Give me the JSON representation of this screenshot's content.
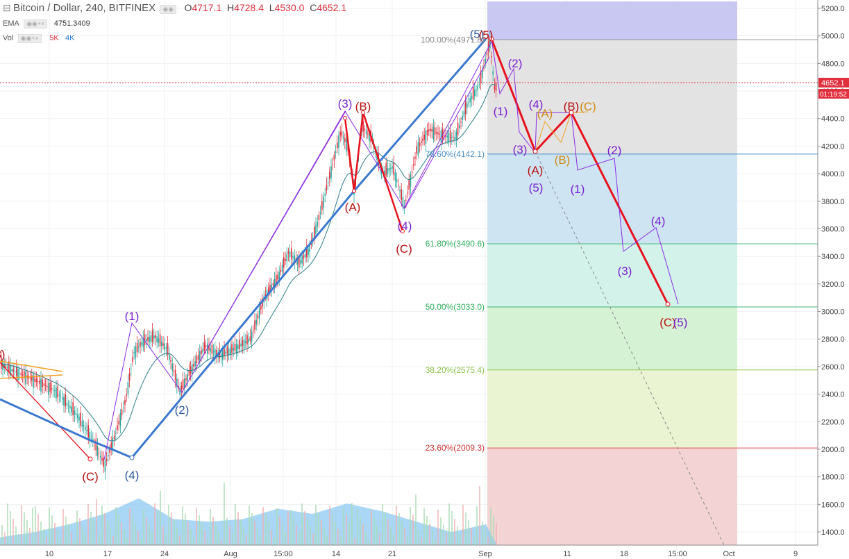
{
  "header": {
    "symbol": "Bitcoin / Dollar, 240, BITFINEX",
    "o_label": "O",
    "o": "4717.1",
    "h_label": "H",
    "h": "4728.4",
    "l_label": "L",
    "l": "4530.0",
    "c_label": "C",
    "c": "4652.1",
    "ema_label": "EMA",
    "ema_value": "4751.3409",
    "vol_label": "Vol",
    "vol_a": "5K",
    "vol_b": "4K"
  },
  "colors": {
    "up": "#26a69a",
    "down": "#e0303e",
    "volume": "#7ec0ee",
    "fib_100": "#7b68ee",
    "fib_786": "#c0c0c0",
    "fib_618": "#8ccbe8",
    "fib_50": "#7fe0c7",
    "fib_382": "#90e090",
    "fib_236": "#e6f0a0",
    "fib_0": "#f0a8a8",
    "wave_red": "#e8121e",
    "wave_blue": "#3b78d0",
    "wave_purple": "#8a2be2",
    "wave_orange": "#f0a020"
  },
  "chart_data": {
    "type": "line",
    "title": "Bitcoin / Dollar, 240, BITFINEX",
    "xlabel": "",
    "ylabel": "",
    "ylim": [
      1300,
      5250
    ],
    "x_ticks": [
      "10",
      "17",
      "24",
      "Aug",
      "15:00",
      "14",
      "21",
      "Sep",
      "11",
      "18",
      "15:00",
      "Oct",
      "9"
    ],
    "y_ticks": [
      "5200.0",
      "5000.0",
      "4800.0",
      "4600.0",
      "4400.0",
      "4200.0",
      "4000.0",
      "3800.0",
      "3600.0",
      "3400.0",
      "3200.0",
      "3000.0",
      "2800.0",
      "2600.0",
      "2400.0",
      "2200.0",
      "2000.0",
      "1800.0",
      "1600.0",
      "1400.0"
    ],
    "current_price": "4652.1",
    "countdown": "01:19:52",
    "fib_levels": [
      {
        "label": "100.00%(4971.8)",
        "value": 4971.8
      },
      {
        "label": "78.60%(4142.1)",
        "value": 4142.1
      },
      {
        "label": "61.80%(3490.6)",
        "value": 3490.6
      },
      {
        "label": "50.00%(3033.0)",
        "value": 3033.0
      },
      {
        "label": "38.20%(2575.4)",
        "value": 2575.4
      },
      {
        "label": "23.60%(2009.3)",
        "value": 2009.3
      }
    ],
    "price_path": [
      [
        0,
        2620
      ],
      [
        22,
        2560
      ],
      [
        50,
        2500
      ],
      [
        80,
        2420
      ],
      [
        110,
        2250
      ],
      [
        135,
        2050
      ],
      [
        150,
        1880
      ],
      [
        165,
        2100
      ],
      [
        180,
        2350
      ],
      [
        192,
        2700
      ],
      [
        205,
        2780
      ],
      [
        222,
        2820
      ],
      [
        240,
        2730
      ],
      [
        258,
        2420
      ],
      [
        275,
        2580
      ],
      [
        295,
        2750
      ],
      [
        315,
        2680
      ],
      [
        340,
        2740
      ],
      [
        360,
        2800
      ],
      [
        380,
        3100
      ],
      [
        400,
        3250
      ],
      [
        415,
        3430
      ],
      [
        430,
        3350
      ],
      [
        445,
        3450
      ],
      [
        460,
        3700
      ],
      [
        475,
        4000
      ],
      [
        490,
        4300
      ],
      [
        500,
        4200
      ],
      [
        510,
        3870
      ],
      [
        520,
        4350
      ],
      [
        535,
        4250
      ],
      [
        550,
        4000
      ],
      [
        565,
        4050
      ],
      [
        582,
        3760
      ],
      [
        600,
        4180
      ],
      [
        618,
        4320
      ],
      [
        635,
        4280
      ],
      [
        655,
        4260
      ],
      [
        672,
        4500
      ],
      [
        690,
        4650
      ],
      [
        705,
        4960
      ],
      [
        712,
        4600
      ],
      [
        716,
        4652
      ]
    ],
    "volume_profile": [
      [
        0,
        0.15
      ],
      [
        50,
        0.25
      ],
      [
        100,
        0.4
      ],
      [
        150,
        0.6
      ],
      [
        200,
        0.9
      ],
      [
        250,
        0.5
      ],
      [
        300,
        0.45
      ],
      [
        350,
        0.5
      ],
      [
        400,
        0.7
      ],
      [
        450,
        0.6
      ],
      [
        500,
        0.8
      ],
      [
        550,
        0.65
      ],
      [
        600,
        0.45
      ],
      [
        650,
        0.25
      ],
      [
        700,
        0.4
      ]
    ],
    "forecast_path": [
      [
        708,
        4971.8
      ],
      [
        770,
        4150
      ],
      [
        822,
        4420
      ],
      [
        962,
        3040
      ]
    ],
    "wave_labels": [
      {
        "text": "(1)",
        "color": "#7a1fd0"
      },
      {
        "text": "(2)",
        "color": "#7a1fd0"
      },
      {
        "text": "(3)",
        "color": "#7a1fd0"
      },
      {
        "text": "(4)",
        "color": "#7a1fd0"
      },
      {
        "text": "(5)",
        "color": "#7a1fd0"
      },
      {
        "text": "(A)",
        "color": "#b81010"
      },
      {
        "text": "(B)",
        "color": "#b81010"
      },
      {
        "text": "(C)",
        "color": "#b81010"
      }
    ]
  },
  "annotations": [
    {
      "text": "3)",
      "color": "#b81010"
    },
    {
      "text": "(C)",
      "color": "#b81010"
    },
    {
      "text": "(1)",
      "color": "#7a1fd0"
    },
    {
      "text": "(2)",
      "color": "#2d5aa0"
    },
    {
      "text": "(4)",
      "color": "#2d5aa0"
    },
    {
      "text": "(3)",
      "color": "#7a1fd0"
    },
    {
      "text": "(B)",
      "color": "#b81010"
    },
    {
      "text": "(A)",
      "color": "#b81010"
    },
    {
      "text": "(4)",
      "color": "#7a1fd0"
    },
    {
      "text": "(C)",
      "color": "#b81010"
    },
    {
      "text": "(5)",
      "color": "#2d5aa0"
    },
    {
      "text": "(5)",
      "color": "#b81010"
    },
    {
      "text": "(2)",
      "color": "#7a1fd0"
    },
    {
      "text": "(1)",
      "color": "#7a1fd0"
    },
    {
      "text": "(4)",
      "color": "#7a1fd0"
    },
    {
      "text": "(A)",
      "color": "#d08a10"
    },
    {
      "text": "(B)",
      "color": "#b81010"
    },
    {
      "text": "(C)",
      "color": "#d08a10"
    },
    {
      "text": "(3)",
      "color": "#7a1fd0"
    },
    {
      "text": "(B)",
      "color": "#d08a10"
    },
    {
      "text": "(A)",
      "color": "#b81010"
    },
    {
      "text": "(5)",
      "color": "#7a1fd0"
    },
    {
      "text": "(1)",
      "color": "#7a1fd0"
    },
    {
      "text": "(2)",
      "color": "#7a1fd0"
    },
    {
      "text": "(4)",
      "color": "#7a1fd0"
    },
    {
      "text": "(3)",
      "color": "#7a1fd0"
    },
    {
      "text": "(C)",
      "color": "#b81010"
    },
    {
      "text": "(5)",
      "color": "#7a1fd0"
    }
  ]
}
